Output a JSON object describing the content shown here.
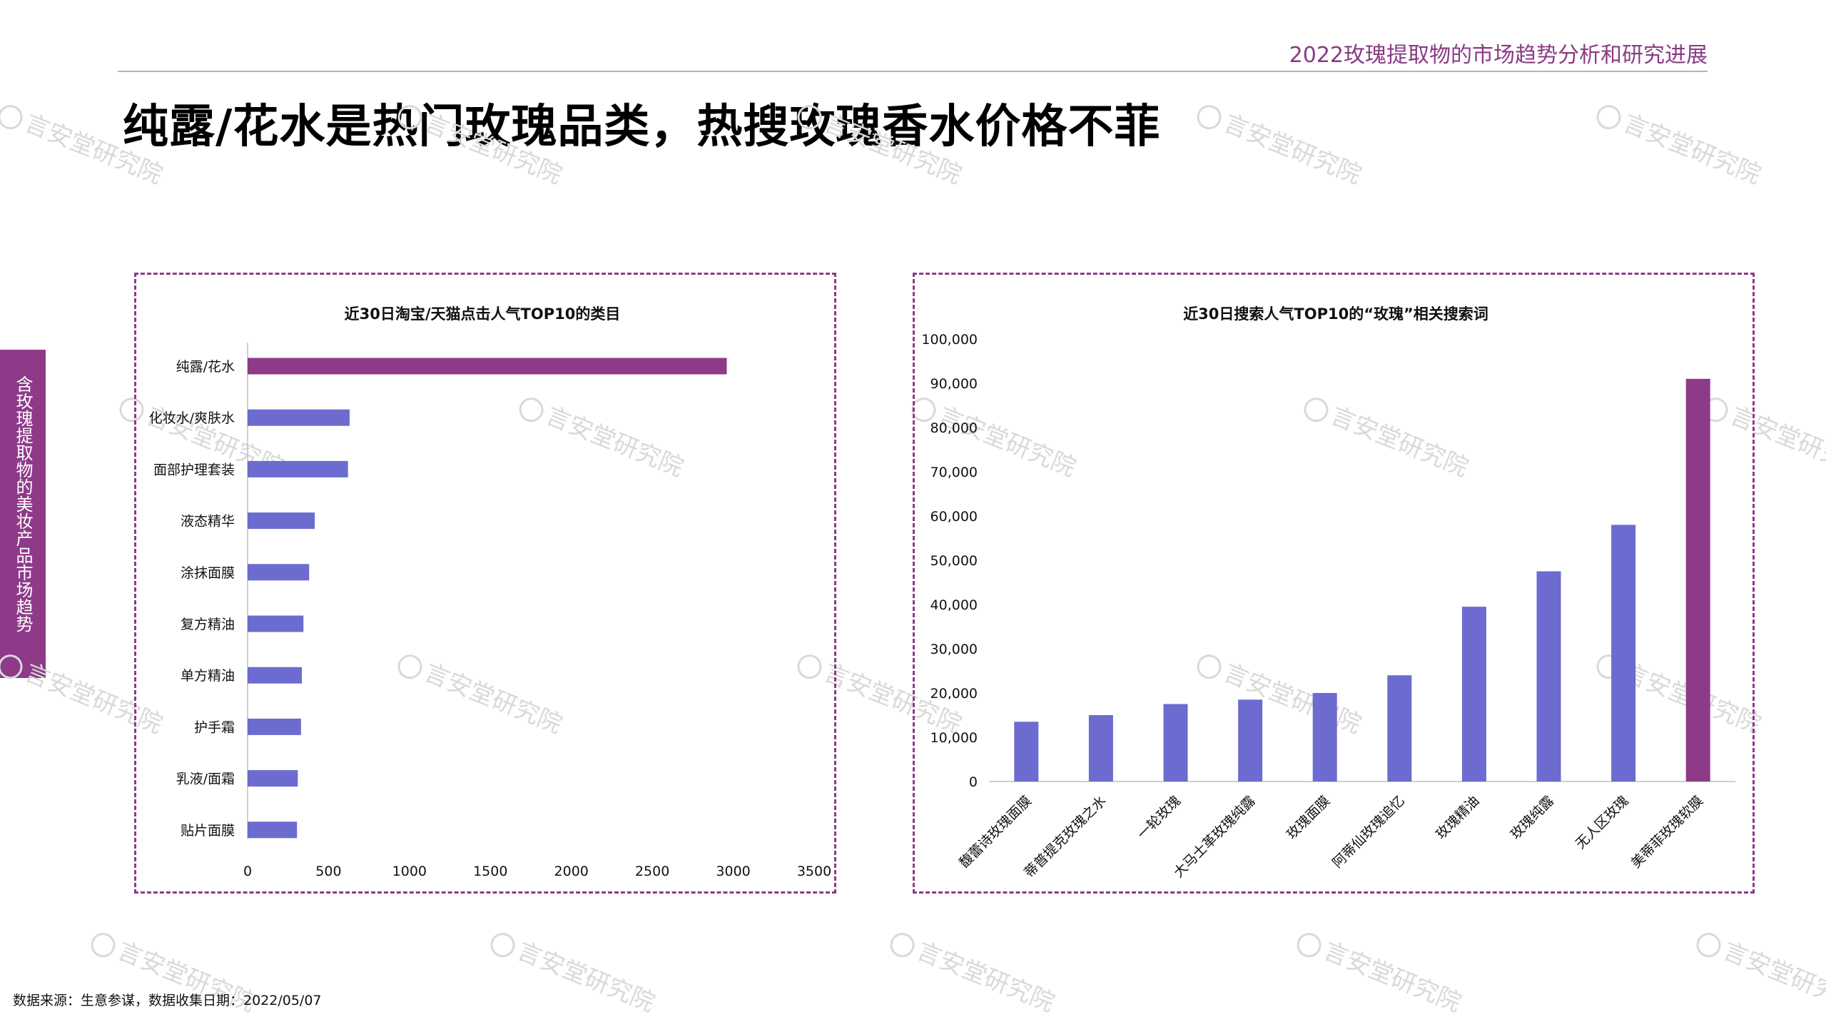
{
  "header": {
    "title": "2022玫瑰提取物的市场趋势分析和研究进展"
  },
  "page_title": "纯露/花水是热门玫瑰品类，热搜玫瑰香水价格不菲",
  "side_tab": {
    "label": "含玫瑰提取物的美妆产品市场趋势"
  },
  "watermark": {
    "text": "言安堂研究院"
  },
  "source": "数据来源：生意参谋，数据收集日期：2022/05/07",
  "colors": {
    "accent": "#8e3a89",
    "bar": "#6b6bd0",
    "highlight": "#8e3a89"
  },
  "chart_data": [
    {
      "type": "bar",
      "orientation": "horizontal",
      "title": "近30日淘宝/天猫点击人气TOP10的类目",
      "categories": [
        "纯露/花水",
        "化妆水/爽肤水",
        "面部护理套装",
        "液态精华",
        "涂抹面膜",
        "复方精油",
        "单方精油",
        "护手霜",
        "乳液/面霜",
        "贴片面膜"
      ],
      "values": [
        2960,
        630,
        620,
        415,
        380,
        345,
        335,
        330,
        310,
        305
      ],
      "highlight_index": 0,
      "xlim": [
        0,
        3500
      ],
      "xticks": [
        "0",
        "500",
        "1000",
        "1500",
        "2000",
        "2500",
        "3000",
        "3500"
      ],
      "grid": false
    },
    {
      "type": "bar",
      "orientation": "vertical",
      "title": "近30日搜索人气TOP10的“玫瑰”相关搜索词",
      "categories": [
        "馥蕾诗玫瑰面膜",
        "蒂普提克玫瑰之水",
        "一轮玫瑰",
        "大马士革玫瑰纯露",
        "玫瑰面膜",
        "阿蒂仙玫瑰追忆",
        "玫瑰精油",
        "玫瑰纯露",
        "无人区玫瑰",
        "美蒂菲玫瑰软膜"
      ],
      "values": [
        13500,
        15000,
        17500,
        18500,
        20000,
        24000,
        39500,
        47500,
        58000,
        91000
      ],
      "highlight_index": 9,
      "ylim": [
        0,
        100000
      ],
      "yticks": [
        "0",
        "10,000",
        "20,000",
        "30,000",
        "40,000",
        "50,000",
        "60,000",
        "70,000",
        "80,000",
        "90,000",
        "100,000"
      ],
      "grid": false
    }
  ]
}
